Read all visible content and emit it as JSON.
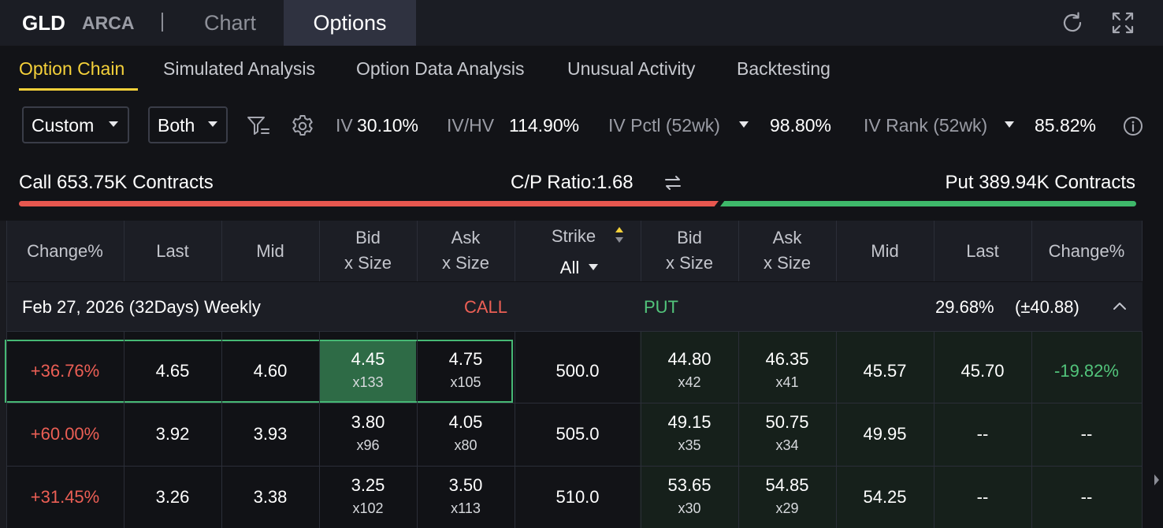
{
  "topbar": {
    "symbol": "GLD",
    "exchange": "ARCA",
    "tabs": [
      {
        "label": "Chart",
        "active": false
      },
      {
        "label": "Options",
        "active": true
      }
    ],
    "icons": [
      "refresh-icon",
      "expand-icon"
    ]
  },
  "subtabs": [
    {
      "label": "Option Chain",
      "active": true
    },
    {
      "label": "Simulated Analysis",
      "active": false
    },
    {
      "label": "Option Data Analysis",
      "active": false
    },
    {
      "label": "Unusual Activity",
      "active": false
    },
    {
      "label": "Backtesting",
      "active": false
    }
  ],
  "filters": {
    "range_select": "Custom",
    "side_select": "Both",
    "iv_label": "IV",
    "iv_value": "30.10%",
    "ivhv_label": "IV/HV",
    "ivhv_value": "114.90%",
    "ivpctl_label": "IV Pctl (52wk)",
    "ivpctl_value": "98.80%",
    "ivrank_label": "IV Rank (52wk)",
    "ivrank_value": "85.82%"
  },
  "volume": {
    "call_text": "Call 653.75K Contracts",
    "ratio_text": "C/P Ratio:1.68",
    "put_text": "Put 389.94K Contracts",
    "call_color": "#e7574f",
    "put_color": "#3eb86a"
  },
  "table": {
    "headers": {
      "call_change": "Change%",
      "call_last": "Last",
      "call_mid": "Mid",
      "call_bid_1": "Bid",
      "call_bid_2": "x Size",
      "call_ask_1": "Ask",
      "call_ask_2": "x Size",
      "strike": "Strike",
      "strike_filter": "All",
      "put_bid_1": "Bid",
      "put_bid_2": "x Size",
      "put_ask_1": "Ask",
      "put_ask_2": "x Size",
      "put_mid": "Mid",
      "put_last": "Last",
      "put_change": "Change%"
    },
    "expiry": {
      "label": "Feb 27, 2026 (32Days) Weekly",
      "call_label": "CALL",
      "put_label": "PUT",
      "iv": "29.68%",
      "move": "(±40.88)"
    },
    "rows": [
      {
        "call_change": "+36.76%",
        "call_last": "4.65",
        "call_mid": "4.60",
        "call_bid": "4.45",
        "call_bid_size": "x133",
        "call_ask": "4.75",
        "call_ask_size": "x105",
        "strike": "500.0",
        "put_bid": "44.80",
        "put_bid_size": "x42",
        "put_ask": "46.35",
        "put_ask_size": "x41",
        "put_mid": "45.57",
        "put_last": "45.70",
        "put_change": "-19.82%"
      },
      {
        "call_change": "+60.00%",
        "call_last": "3.92",
        "call_mid": "3.93",
        "call_bid": "3.80",
        "call_bid_size": "x96",
        "call_ask": "4.05",
        "call_ask_size": "x80",
        "strike": "505.0",
        "put_bid": "49.15",
        "put_bid_size": "x35",
        "put_ask": "50.75",
        "put_ask_size": "x34",
        "put_mid": "49.95",
        "put_last": "--",
        "put_change": "--"
      },
      {
        "call_change": "+31.45%",
        "call_last": "3.26",
        "call_mid": "3.38",
        "call_bid": "3.25",
        "call_bid_size": "x102",
        "call_ask": "3.50",
        "call_ask_size": "x113",
        "strike": "510.0",
        "put_bid": "53.65",
        "put_bid_size": "x30",
        "put_ask": "54.85",
        "put_ask_size": "x29",
        "put_mid": "54.25",
        "put_last": "--",
        "put_change": "--"
      }
    ]
  }
}
